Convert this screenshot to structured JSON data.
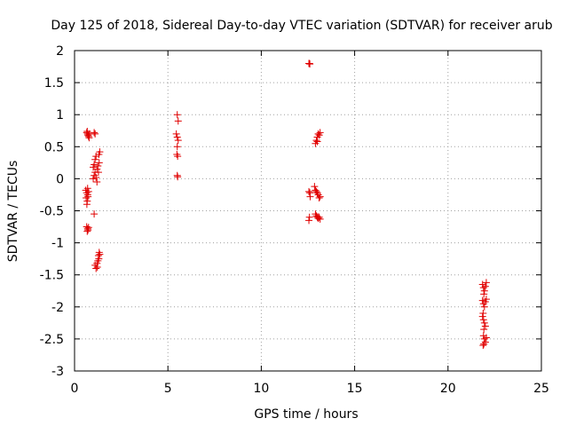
{
  "chart_data": {
    "type": "scatter",
    "title": "Day 125 of 2018, Sidereal Day-to-day VTEC variation (SDTVAR) for receiver arub",
    "xlabel": "GPS time / hours",
    "ylabel": "SDTVAR / TECUs",
    "xlim": [
      0,
      25
    ],
    "ylim": [
      -3,
      2
    ],
    "xticks": [
      0,
      5,
      10,
      15,
      20,
      25
    ],
    "xtick_labels": [
      "0",
      "5",
      "10",
      "15",
      "20",
      "25"
    ],
    "yticks": [
      -3,
      -2.5,
      -2,
      -1.5,
      -1,
      -0.5,
      0,
      0.5,
      1,
      1.5,
      2
    ],
    "ytick_labels": [
      "-3",
      "-2.5",
      "-2",
      "-1.5",
      "-1",
      "-0.5",
      "0",
      "0.5",
      "1",
      "1.5",
      "2"
    ],
    "grid": true,
    "marker": "+",
    "color": "#e00000",
    "series": [
      {
        "name": "SDTVAR",
        "points": [
          [
            0.65,
            0.72
          ],
          [
            0.7,
            0.7
          ],
          [
            0.72,
            0.68
          ],
          [
            0.75,
            0.66
          ],
          [
            0.78,
            0.64
          ],
          [
            0.8,
            0.7
          ],
          [
            0.68,
            0.74
          ],
          [
            0.6,
            -0.18
          ],
          [
            0.65,
            -0.22
          ],
          [
            0.7,
            -0.25
          ],
          [
            0.62,
            -0.3
          ],
          [
            0.68,
            -0.35
          ],
          [
            0.72,
            -0.28
          ],
          [
            0.66,
            -0.4
          ],
          [
            0.7,
            -0.15
          ],
          [
            0.75,
            -0.2
          ],
          [
            0.65,
            -0.75
          ],
          [
            0.7,
            -0.78
          ],
          [
            0.68,
            -0.82
          ],
          [
            0.72,
            -0.8
          ],
          [
            0.75,
            -0.76
          ],
          [
            1.05,
            0.72
          ],
          [
            1.1,
            0.7
          ],
          [
            1.0,
            0.0
          ],
          [
            1.05,
            0.05
          ],
          [
            1.1,
            0.1
          ],
          [
            1.0,
            0.18
          ],
          [
            1.05,
            0.22
          ],
          [
            1.1,
            0.3
          ],
          [
            1.15,
            0.35
          ],
          [
            1.2,
            0.15
          ],
          [
            1.25,
            0.2
          ],
          [
            1.3,
            0.38
          ],
          [
            1.35,
            0.42
          ],
          [
            1.15,
            0.02
          ],
          [
            1.2,
            -0.05
          ],
          [
            1.28,
            0.1
          ],
          [
            1.32,
            0.25
          ],
          [
            1.05,
            -0.55
          ],
          [
            1.1,
            -1.35
          ],
          [
            1.15,
            -1.4
          ],
          [
            1.2,
            -1.32
          ],
          [
            1.25,
            -1.28
          ],
          [
            1.3,
            -1.25
          ],
          [
            1.28,
            -1.2
          ],
          [
            1.32,
            -1.15
          ],
          [
            1.35,
            -1.18
          ],
          [
            1.22,
            -1.38
          ],
          [
            5.5,
            1.0
          ],
          [
            5.55,
            0.9
          ],
          [
            5.45,
            0.7
          ],
          [
            5.5,
            0.65
          ],
          [
            5.55,
            0.6
          ],
          [
            5.5,
            0.5
          ],
          [
            5.48,
            0.38
          ],
          [
            5.52,
            0.35
          ],
          [
            5.5,
            0.05
          ],
          [
            5.52,
            0.03
          ],
          [
            12.55,
            1.8
          ],
          [
            12.6,
            1.79
          ],
          [
            12.58,
            1.8
          ],
          [
            12.55,
            -0.2
          ],
          [
            12.6,
            -0.22
          ],
          [
            12.62,
            -0.28
          ],
          [
            12.58,
            -0.6
          ],
          [
            12.55,
            -0.65
          ],
          [
            12.9,
            0.55
          ],
          [
            12.95,
            0.6
          ],
          [
            13.0,
            0.65
          ],
          [
            13.05,
            0.7
          ],
          [
            13.1,
            0.68
          ],
          [
            13.15,
            0.72
          ],
          [
            13.0,
            0.58
          ],
          [
            12.85,
            -0.12
          ],
          [
            12.9,
            -0.18
          ],
          [
            12.95,
            -0.2
          ],
          [
            13.0,
            -0.22
          ],
          [
            13.05,
            -0.25
          ],
          [
            13.1,
            -0.3
          ],
          [
            13.15,
            -0.28
          ],
          [
            12.9,
            -0.55
          ],
          [
            12.95,
            -0.58
          ],
          [
            13.0,
            -0.6
          ],
          [
            13.05,
            -0.62
          ],
          [
            13.1,
            -0.6
          ],
          [
            13.15,
            -0.63
          ],
          [
            21.85,
            -1.65
          ],
          [
            21.9,
            -1.7
          ],
          [
            21.95,
            -1.75
          ],
          [
            22.0,
            -1.68
          ],
          [
            22.05,
            -1.62
          ],
          [
            21.92,
            -1.8
          ],
          [
            21.85,
            -1.9
          ],
          [
            21.9,
            -1.95
          ],
          [
            21.95,
            -2.0
          ],
          [
            22.0,
            -1.92
          ],
          [
            22.05,
            -1.88
          ],
          [
            21.85,
            -2.15
          ],
          [
            21.9,
            -2.2
          ],
          [
            21.95,
            -2.25
          ],
          [
            22.0,
            -2.3
          ],
          [
            21.92,
            -2.35
          ],
          [
            21.88,
            -2.1
          ],
          [
            21.9,
            -2.45
          ],
          [
            21.95,
            -2.5
          ],
          [
            22.0,
            -2.55
          ],
          [
            22.05,
            -2.48
          ],
          [
            21.88,
            -2.6
          ],
          [
            21.92,
            -2.58
          ]
        ]
      }
    ]
  }
}
